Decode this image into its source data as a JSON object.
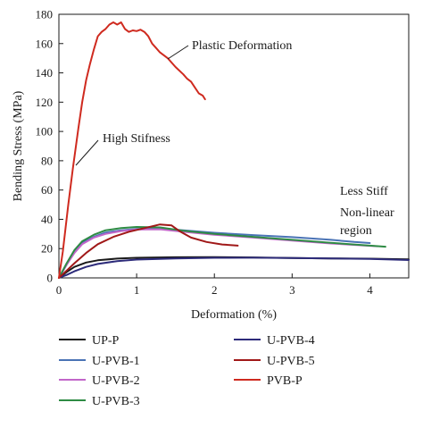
{
  "chart_data": {
    "type": "line",
    "xlabel": "Deformation (%)",
    "ylabel": "Bending Stress (MPa)",
    "xlim": [
      0,
      4.5
    ],
    "ylim": [
      0,
      180
    ],
    "x_ticks": [
      "0",
      "1",
      "2",
      "3",
      "4"
    ],
    "y_ticks": [
      "0",
      "20",
      "40",
      "60",
      "80",
      "100",
      "120",
      "140",
      "160",
      "180"
    ],
    "grid": false,
    "legend_position": "bottom",
    "annotations": {
      "plastic": "Plastic Deformation",
      "high_stiffness": "High Stifness",
      "less_stiff": "Less Stiff",
      "nonlinear_line1": "Non-linear",
      "nonlinear_line2": "region"
    },
    "series": [
      {
        "name": "UP-P",
        "color": "#1a1a1a",
        "points": [
          [
            0,
            0
          ],
          [
            0.1,
            4
          ],
          [
            0.2,
            7.5
          ],
          [
            0.35,
            10.5
          ],
          [
            0.5,
            12
          ],
          [
            0.75,
            13.2
          ],
          [
            1.0,
            13.7
          ],
          [
            1.5,
            14.1
          ],
          [
            2.0,
            14.2
          ],
          [
            2.5,
            14.0
          ],
          [
            3.0,
            13.6
          ],
          [
            3.5,
            13.3
          ],
          [
            4.0,
            13.1
          ],
          [
            4.5,
            12.7
          ]
        ]
      },
      {
        "name": "U-PVB-1",
        "color": "#4a73b5",
        "points": [
          [
            0,
            0
          ],
          [
            0.1,
            9
          ],
          [
            0.2,
            18
          ],
          [
            0.3,
            24
          ],
          [
            0.45,
            28
          ],
          [
            0.6,
            31
          ],
          [
            0.8,
            32.5
          ],
          [
            1.0,
            33.4
          ],
          [
            1.3,
            33.8
          ],
          [
            1.6,
            32.5
          ],
          [
            2.0,
            30.8
          ],
          [
            2.5,
            29.2
          ],
          [
            3.0,
            27.8
          ],
          [
            3.5,
            26
          ],
          [
            3.8,
            24.5
          ],
          [
            4.0,
            23.8
          ]
        ]
      },
      {
        "name": "U-PVB-2",
        "color": "#c266c9",
        "points": [
          [
            0,
            0
          ],
          [
            0.1,
            9
          ],
          [
            0.2,
            17
          ],
          [
            0.3,
            23
          ],
          [
            0.45,
            27.5
          ],
          [
            0.6,
            30
          ],
          [
            0.8,
            32
          ],
          [
            1.0,
            33
          ],
          [
            1.3,
            33.2
          ],
          [
            1.6,
            31.5
          ],
          [
            2.0,
            29.5
          ],
          [
            2.5,
            27.5
          ],
          [
            3.0,
            25.5
          ],
          [
            3.5,
            23.5
          ],
          [
            3.9,
            22.2
          ],
          [
            4.1,
            21.6
          ]
        ]
      },
      {
        "name": "U-PVB-3",
        "color": "#2e8b44",
        "points": [
          [
            0,
            0
          ],
          [
            0.1,
            10
          ],
          [
            0.2,
            19
          ],
          [
            0.3,
            25
          ],
          [
            0.45,
            29.5
          ],
          [
            0.6,
            32.5
          ],
          [
            0.8,
            34
          ],
          [
            1.0,
            34.8
          ],
          [
            1.3,
            34.5
          ],
          [
            1.6,
            32.2
          ],
          [
            2.0,
            30
          ],
          [
            2.5,
            28
          ],
          [
            3.0,
            26
          ],
          [
            3.5,
            24
          ],
          [
            4.0,
            22
          ],
          [
            4.2,
            21.3
          ]
        ]
      },
      {
        "name": "U-PVB-4",
        "color": "#2d2b7a",
        "points": [
          [
            0,
            0
          ],
          [
            0.1,
            2
          ],
          [
            0.2,
            4.5
          ],
          [
            0.35,
            7.5
          ],
          [
            0.5,
            9.5
          ],
          [
            0.75,
            11.5
          ],
          [
            1.0,
            12.5
          ],
          [
            1.5,
            13.3
          ],
          [
            2.0,
            13.7
          ],
          [
            2.5,
            13.8
          ],
          [
            3.0,
            13.6
          ],
          [
            3.5,
            13.3
          ],
          [
            4.0,
            13.0
          ],
          [
            4.5,
            12.2
          ]
        ]
      },
      {
        "name": "U-PVB-5",
        "color": "#a01818",
        "points": [
          [
            0,
            0
          ],
          [
            0.1,
            5
          ],
          [
            0.2,
            10
          ],
          [
            0.35,
            17
          ],
          [
            0.5,
            23
          ],
          [
            0.7,
            28
          ],
          [
            0.9,
            31.5
          ],
          [
            1.1,
            34
          ],
          [
            1.3,
            36.5
          ],
          [
            1.45,
            35.8
          ],
          [
            1.55,
            32
          ],
          [
            1.7,
            27.5
          ],
          [
            1.9,
            24.5
          ],
          [
            2.1,
            22.8
          ],
          [
            2.3,
            22.0
          ]
        ]
      },
      {
        "name": "PVB-P",
        "color": "#cf2a1f",
        "points": [
          [
            0,
            0
          ],
          [
            0.05,
            18
          ],
          [
            0.12,
            50
          ],
          [
            0.18,
            75
          ],
          [
            0.25,
            102
          ],
          [
            0.3,
            120
          ],
          [
            0.35,
            135
          ],
          [
            0.4,
            146
          ],
          [
            0.45,
            156
          ],
          [
            0.5,
            165
          ],
          [
            0.55,
            168
          ],
          [
            0.6,
            170
          ],
          [
            0.65,
            173
          ],
          [
            0.7,
            174.5
          ],
          [
            0.75,
            173
          ],
          [
            0.8,
            174.5
          ],
          [
            0.85,
            170
          ],
          [
            0.9,
            168
          ],
          [
            0.95,
            169
          ],
          [
            1.0,
            168.5
          ],
          [
            1.05,
            169.5
          ],
          [
            1.1,
            168
          ],
          [
            1.15,
            165
          ],
          [
            1.2,
            160
          ],
          [
            1.25,
            157
          ],
          [
            1.3,
            154
          ],
          [
            1.4,
            150
          ],
          [
            1.5,
            144
          ],
          [
            1.6,
            139
          ],
          [
            1.65,
            136
          ],
          [
            1.7,
            134
          ],
          [
            1.75,
            130
          ],
          [
            1.8,
            126
          ],
          [
            1.85,
            124.5
          ],
          [
            1.88,
            122
          ]
        ]
      }
    ]
  }
}
